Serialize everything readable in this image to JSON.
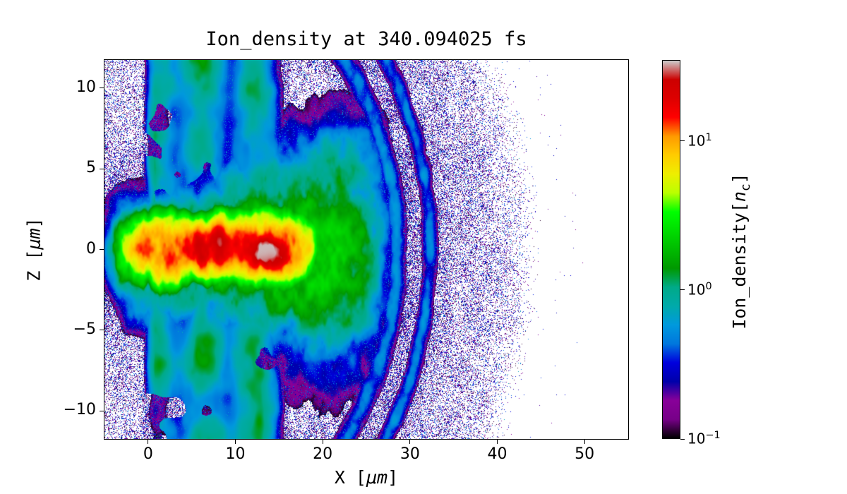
{
  "figure": {
    "title": "Ion_density at 340.094025 fs",
    "xlabel_pre": "X [",
    "xlabel_math": "μm",
    "xlabel_post": "]",
    "ylabel_pre": "Z [",
    "ylabel_math": "μm",
    "ylabel_post": "]",
    "cbar_pre": "Ion_density[",
    "cbar_sym": "n",
    "cbar_sub": "c",
    "cbar_post": "]",
    "background_color": "#ffffff",
    "frame_color": "#000000"
  },
  "chart_data": {
    "type": "heatmap",
    "title": "Ion_density at 340.094025 fs",
    "xlabel": "X [μm]",
    "ylabel": "Z [μm]",
    "x_range": [
      -5,
      55
    ],
    "z_range": [
      -11.75,
      11.75
    ],
    "grid": false,
    "x_ticks": [
      {
        "value": 0,
        "label": "0"
      },
      {
        "value": 10,
        "label": "10"
      },
      {
        "value": 20,
        "label": "20"
      },
      {
        "value": 30,
        "label": "30"
      },
      {
        "value": 40,
        "label": "40"
      },
      {
        "value": 50,
        "label": "50"
      }
    ],
    "z_ticks": [
      {
        "value": 10,
        "label": "10"
      },
      {
        "value": 5,
        "label": "5"
      },
      {
        "value": 0,
        "label": "0"
      },
      {
        "value": -5,
        "label": "−5"
      },
      {
        "value": -10,
        "label": "−10"
      }
    ],
    "color_scale": {
      "label": "Ion_density[n_c]",
      "scale": "log",
      "vmin": 0.1,
      "vmax": 35,
      "ticks": [
        {
          "value": 10,
          "label_base": "10",
          "label_exp": "1"
        },
        {
          "value": 1,
          "label_base": "10",
          "label_exp": "0"
        },
        {
          "value": 0.1,
          "label_base": "10",
          "label_exp": "−1"
        }
      ],
      "colormap": "nipy_spectral",
      "colormap_stops": [
        [
          0.0,
          0,
          0,
          0
        ],
        [
          0.05,
          0.4667,
          0,
          0.5333
        ],
        [
          0.1,
          0.5333,
          0,
          0.6
        ],
        [
          0.15,
          0,
          0,
          0.6667
        ],
        [
          0.2,
          0,
          0,
          0.8667
        ],
        [
          0.25,
          0,
          0.4667,
          0.8667
        ],
        [
          0.3,
          0,
          0.6,
          0.8667
        ],
        [
          0.35,
          0,
          0.6667,
          0.6667
        ],
        [
          0.4,
          0,
          0.6667,
          0.5333
        ],
        [
          0.45,
          0,
          0.6,
          0
        ],
        [
          0.5,
          0,
          0.7333,
          0
        ],
        [
          0.55,
          0,
          0.8667,
          0
        ],
        [
          0.6,
          0,
          1,
          0
        ],
        [
          0.65,
          0.7333,
          1,
          0
        ],
        [
          0.7,
          0.9333,
          0.9333,
          0
        ],
        [
          0.75,
          1,
          0.8,
          0
        ],
        [
          0.8,
          1,
          0.6,
          0
        ],
        [
          0.85,
          1,
          0,
          0
        ],
        [
          0.9,
          0.8667,
          0,
          0
        ],
        [
          0.95,
          0.8,
          0,
          0
        ],
        [
          1.0,
          0.8,
          0.8,
          0.8
        ]
      ]
    },
    "features": [
      {
        "name": "hot-core-channel",
        "x_um": [
          -1,
          18
        ],
        "z_um": [
          -2,
          2
        ],
        "density_nc": [
          4,
          20
        ],
        "appearance": "yellow-orange-red jet along z=0"
      },
      {
        "name": "peak-density-spots",
        "x_um": [
          5,
          16
        ],
        "z_um": [
          -1.5,
          1.5
        ],
        "density_nc": [
          13,
          35
        ],
        "appearance": "dark-red blobs, tiny gray saturation near x=14"
      },
      {
        "name": "green-sheath-plume",
        "x_um": [
          -5,
          30
        ],
        "z_um": [
          -6,
          6
        ],
        "density_nc": [
          1,
          3
        ],
        "appearance": "green envelope widening with x"
      },
      {
        "name": "target-slab-columns",
        "x_um": [
          0,
          15.5
        ],
        "z_um": [
          -11.75,
          11.75
        ],
        "density_nc": [
          0.3,
          1.5
        ],
        "appearance": "cyan-green mottled vertical bands with white holes"
      },
      {
        "name": "filament-arcs",
        "x_um": [
          22,
          33
        ],
        "z_um": [
          -9,
          10
        ],
        "density_nc": [
          0.3,
          0.7
        ],
        "appearance": "thin blue curved filaments"
      },
      {
        "name": "expanding-halo-speckle",
        "center_x_um": 4,
        "radius_um": 41,
        "density_nc": [
          0.1,
          0.35
        ],
        "appearance": "sparse purple-blue pixel speckle out to blast front at x≈45"
      }
    ]
  }
}
